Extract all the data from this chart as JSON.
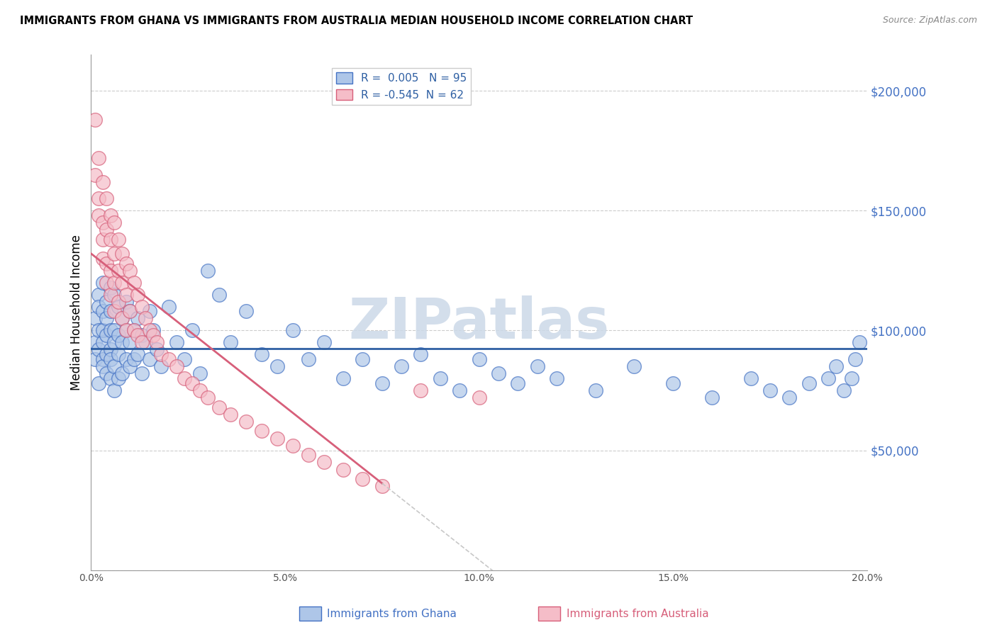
{
  "title": "IMMIGRANTS FROM GHANA VS IMMIGRANTS FROM AUSTRALIA MEDIAN HOUSEHOLD INCOME CORRELATION CHART",
  "source": "Source: ZipAtlas.com",
  "ylabel": "Median Household Income",
  "y_ticks": [
    0,
    50000,
    100000,
    150000,
    200000
  ],
  "y_tick_labels": [
    "",
    "$50,000",
    "$100,000",
    "$150,000",
    "$200,000"
  ],
  "x_min": 0.0,
  "x_max": 0.2,
  "y_min": 10000,
  "y_max": 215000,
  "ghana_color": "#aec6e8",
  "ghana_edge_color": "#4472c4",
  "australia_color": "#f5bdc8",
  "australia_edge_color": "#d75f7a",
  "ghana_R": 0.005,
  "ghana_N": 95,
  "australia_R": -0.545,
  "australia_N": 62,
  "trend_color_ghana": "#2e5fa3",
  "trend_color_australia": "#d75f7a",
  "trend_color_dashed": "#c8c8c8",
  "watermark_color": "#ccd9e8",
  "watermark_text": "ZIPatlas",
  "legend_label_ghana": "Immigrants from Ghana",
  "legend_label_australia": "Immigrants from Australia",
  "ghana_scatter_x": [
    0.001,
    0.001,
    0.001,
    0.002,
    0.002,
    0.002,
    0.002,
    0.002,
    0.003,
    0.003,
    0.003,
    0.003,
    0.003,
    0.003,
    0.004,
    0.004,
    0.004,
    0.004,
    0.004,
    0.005,
    0.005,
    0.005,
    0.005,
    0.005,
    0.005,
    0.006,
    0.006,
    0.006,
    0.006,
    0.006,
    0.007,
    0.007,
    0.007,
    0.007,
    0.008,
    0.008,
    0.008,
    0.009,
    0.009,
    0.009,
    0.01,
    0.01,
    0.01,
    0.011,
    0.011,
    0.012,
    0.012,
    0.013,
    0.013,
    0.014,
    0.015,
    0.015,
    0.016,
    0.017,
    0.018,
    0.02,
    0.022,
    0.024,
    0.026,
    0.028,
    0.03,
    0.033,
    0.036,
    0.04,
    0.044,
    0.048,
    0.052,
    0.056,
    0.06,
    0.065,
    0.07,
    0.075,
    0.08,
    0.085,
    0.09,
    0.095,
    0.1,
    0.105,
    0.11,
    0.115,
    0.12,
    0.13,
    0.14,
    0.15,
    0.16,
    0.17,
    0.175,
    0.18,
    0.185,
    0.19,
    0.192,
    0.194,
    0.196,
    0.197,
    0.198
  ],
  "ghana_scatter_y": [
    95000,
    105000,
    88000,
    115000,
    100000,
    92000,
    78000,
    110000,
    108000,
    95000,
    88000,
    100000,
    85000,
    120000,
    112000,
    98000,
    90000,
    105000,
    82000,
    118000,
    100000,
    92000,
    88000,
    108000,
    80000,
    115000,
    100000,
    95000,
    85000,
    75000,
    110000,
    98000,
    90000,
    80000,
    105000,
    95000,
    82000,
    112000,
    100000,
    88000,
    108000,
    95000,
    85000,
    100000,
    88000,
    105000,
    90000,
    98000,
    82000,
    95000,
    108000,
    88000,
    100000,
    92000,
    85000,
    110000,
    95000,
    88000,
    100000,
    82000,
    125000,
    115000,
    95000,
    108000,
    90000,
    85000,
    100000,
    88000,
    95000,
    80000,
    88000,
    78000,
    85000,
    90000,
    80000,
    75000,
    88000,
    82000,
    78000,
    85000,
    80000,
    75000,
    85000,
    78000,
    72000,
    80000,
    75000,
    72000,
    78000,
    80000,
    85000,
    75000,
    80000,
    88000,
    95000
  ],
  "australia_scatter_x": [
    0.001,
    0.001,
    0.002,
    0.002,
    0.002,
    0.003,
    0.003,
    0.003,
    0.003,
    0.004,
    0.004,
    0.004,
    0.004,
    0.005,
    0.005,
    0.005,
    0.005,
    0.006,
    0.006,
    0.006,
    0.006,
    0.007,
    0.007,
    0.007,
    0.008,
    0.008,
    0.008,
    0.009,
    0.009,
    0.009,
    0.01,
    0.01,
    0.011,
    0.011,
    0.012,
    0.012,
    0.013,
    0.013,
    0.014,
    0.015,
    0.016,
    0.017,
    0.018,
    0.02,
    0.022,
    0.024,
    0.026,
    0.028,
    0.03,
    0.033,
    0.036,
    0.04,
    0.044,
    0.048,
    0.052,
    0.056,
    0.06,
    0.065,
    0.07,
    0.075,
    0.085,
    0.1
  ],
  "australia_scatter_y": [
    188000,
    165000,
    172000,
    155000,
    148000,
    162000,
    145000,
    138000,
    130000,
    155000,
    142000,
    128000,
    120000,
    148000,
    138000,
    125000,
    115000,
    145000,
    132000,
    120000,
    108000,
    138000,
    125000,
    112000,
    132000,
    120000,
    105000,
    128000,
    115000,
    100000,
    125000,
    108000,
    120000,
    100000,
    115000,
    98000,
    110000,
    95000,
    105000,
    100000,
    98000,
    95000,
    90000,
    88000,
    85000,
    80000,
    78000,
    75000,
    72000,
    68000,
    65000,
    62000,
    58000,
    55000,
    52000,
    48000,
    45000,
    42000,
    38000,
    35000,
    75000,
    72000
  ]
}
